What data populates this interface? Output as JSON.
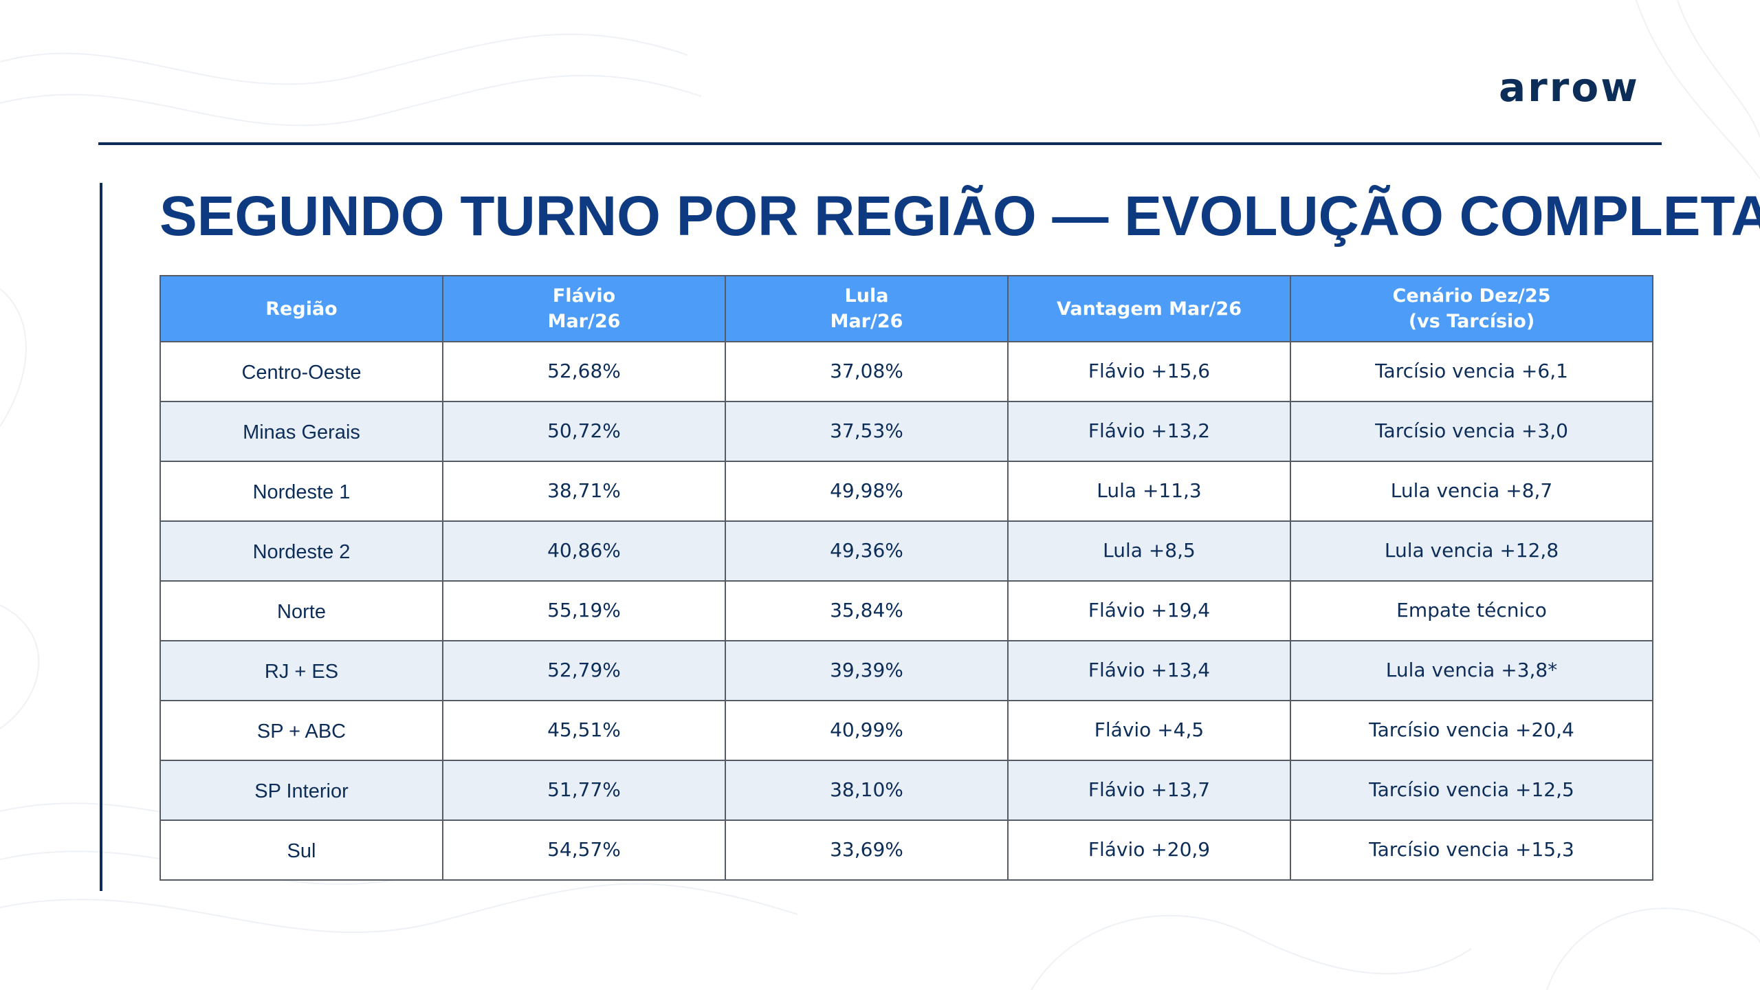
{
  "logo": {
    "text": "arrow"
  },
  "page_title": "SEGUNDO TURNO POR REGIÃO — EVOLUÇÃO COMPLETA",
  "table": {
    "headers": [
      {
        "line1": "Região",
        "line2": ""
      },
      {
        "line1": "Flávio",
        "line2": "Mar/26"
      },
      {
        "line1": "Lula",
        "line2": "Mar/26"
      },
      {
        "line1": "Vantagem Mar/26",
        "line2": ""
      },
      {
        "line1": "Cenário Dez/25",
        "line2": "(vs Tarcísio)"
      }
    ],
    "rows": [
      {
        "region": "Centro-Oeste",
        "flavio": "52,68%",
        "lula": "37,08%",
        "vantagem": "Flávio +15,6",
        "cenario": "Tarcísio vencia +6,1"
      },
      {
        "region": "Minas Gerais",
        "flavio": "50,72%",
        "lula": "37,53%",
        "vantagem": "Flávio +13,2",
        "cenario": "Tarcísio vencia +3,0"
      },
      {
        "region": "Nordeste 1",
        "flavio": "38,71%",
        "lula": "49,98%",
        "vantagem": "Lula +11,3",
        "cenario": "Lula vencia +8,7"
      },
      {
        "region": "Nordeste 2",
        "flavio": "40,86%",
        "lula": "49,36%",
        "vantagem": "Lula +8,5",
        "cenario": "Lula vencia +12,8"
      },
      {
        "region": "Norte",
        "flavio": "55,19%",
        "lula": "35,84%",
        "vantagem": "Flávio +19,4",
        "cenario": "Empate técnico"
      },
      {
        "region": "RJ + ES",
        "flavio": "52,79%",
        "lula": "39,39%",
        "vantagem": "Flávio +13,4",
        "cenario": "Lula vencia +3,8*"
      },
      {
        "region": "SP + ABC",
        "flavio": "45,51%",
        "lula": "40,99%",
        "vantagem": "Flávio +4,5",
        "cenario": "Tarcísio vencia +20,4"
      },
      {
        "region": "SP Interior",
        "flavio": "51,77%",
        "lula": "38,10%",
        "vantagem": "Flávio +13,7",
        "cenario": "Tarcísio vencia +12,5"
      },
      {
        "region": "Sul",
        "flavio": "54,57%",
        "lula": "33,69%",
        "vantagem": "Flávio +20,9",
        "cenario": "Tarcísio vencia +15,3"
      }
    ]
  },
  "colors": {
    "primary_navy": "#0d2d59",
    "title_blue": "#0d3a80",
    "header_blue": "#4d9cf8",
    "stripe_row": "#e9eff7"
  }
}
